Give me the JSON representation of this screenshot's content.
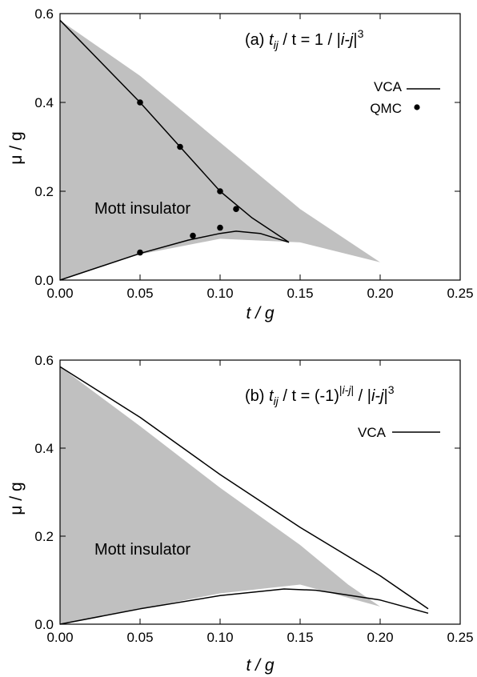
{
  "chart_data": [
    {
      "type": "line",
      "panel": "a",
      "title_parts": {
        "prefix": "(a) ",
        "t1": "t",
        "t1sub": "ij",
        "mid": " / t = 1 / |",
        "i1": "i-j",
        "end": "|",
        "exp": "3"
      },
      "xlabel": "t / g",
      "ylabel": "μ / g",
      "xlim": [
        0,
        0.25
      ],
      "ylim": [
        0,
        0.6
      ],
      "xticks": [
        "0.00",
        "0.05",
        "0.10",
        "0.15",
        "0.20",
        "0.25"
      ],
      "yticks": [
        "0.0",
        "0.2",
        "0.4",
        "0.6"
      ],
      "region_label": "Mott insulator",
      "legend": {
        "position": "top-right",
        "entries": [
          "VCA",
          "QMC"
        ]
      },
      "shaded_region": {
        "upper": [
          [
            0,
            0.585
          ],
          [
            0.05,
            0.46
          ],
          [
            0.1,
            0.31
          ],
          [
            0.15,
            0.16
          ],
          [
            0.2,
            0.04
          ]
        ],
        "lower": [
          [
            0.2,
            0.04
          ],
          [
            0.15,
            0.085
          ],
          [
            0.1,
            0.093
          ],
          [
            0.05,
            0.058
          ],
          [
            0,
            0
          ]
        ]
      },
      "series": [
        {
          "name": "VCA",
          "x": [
            0,
            0.05,
            0.075,
            0.1,
            0.12,
            0.143
          ],
          "y": [
            0.585,
            0.4,
            0.3,
            0.2,
            0.14,
            0.085
          ],
          "style": "line"
        },
        {
          "name": "VCA",
          "x": [
            0,
            0.05,
            0.08,
            0.1,
            0.11,
            0.125,
            0.143
          ],
          "y": [
            0,
            0.06,
            0.09,
            0.105,
            0.11,
            0.105,
            0.085
          ],
          "style": "line"
        },
        {
          "name": "QMC",
          "x": [
            0.05,
            0.075,
            0.1,
            0.11,
            0.05,
            0.083,
            0.1
          ],
          "y": [
            0.4,
            0.3,
            0.2,
            0.16,
            0.062,
            0.1,
            0.118
          ],
          "style": "points"
        }
      ]
    },
    {
      "type": "line",
      "panel": "b",
      "title_parts": {
        "prefix": "(b) ",
        "t1": "t",
        "t1sub": "ij",
        "mid": " / t = (-1)",
        "exp1_pre": "|",
        "exp1_i": "i-j",
        "exp1_post": "|",
        "mid2": " / |",
        "i1": "i-j",
        "end": "|",
        "exp": "3"
      },
      "xlabel": "t / g",
      "ylabel": "μ / g",
      "xlim": [
        0,
        0.25
      ],
      "ylim": [
        0,
        0.6
      ],
      "xticks": [
        "0.00",
        "0.05",
        "0.10",
        "0.15",
        "0.20",
        "0.25"
      ],
      "yticks": [
        "0.0",
        "0.2",
        "0.4",
        "0.6"
      ],
      "region_label": "Mott insulator",
      "legend": {
        "position": "top-right",
        "entries": [
          "VCA"
        ]
      },
      "shaded_region": {
        "upper": [
          [
            0,
            0.585
          ],
          [
            0.05,
            0.45
          ],
          [
            0.1,
            0.31
          ],
          [
            0.15,
            0.18
          ],
          [
            0.18,
            0.09
          ],
          [
            0.2,
            0.04
          ]
        ],
        "lower": [
          [
            0.2,
            0.04
          ],
          [
            0.15,
            0.09
          ],
          [
            0.1,
            0.07
          ],
          [
            0.05,
            0.035
          ],
          [
            0,
            0
          ]
        ]
      },
      "series": [
        {
          "name": "VCA",
          "x": [
            0,
            0.05,
            0.1,
            0.15,
            0.2,
            0.23
          ],
          "y": [
            0.585,
            0.47,
            0.34,
            0.22,
            0.11,
            0.035
          ],
          "style": "line"
        },
        {
          "name": "VCA",
          "x": [
            0,
            0.05,
            0.1,
            0.14,
            0.16,
            0.2,
            0.23
          ],
          "y": [
            0,
            0.035,
            0.065,
            0.08,
            0.077,
            0.055,
            0.025
          ],
          "style": "line"
        }
      ]
    }
  ]
}
